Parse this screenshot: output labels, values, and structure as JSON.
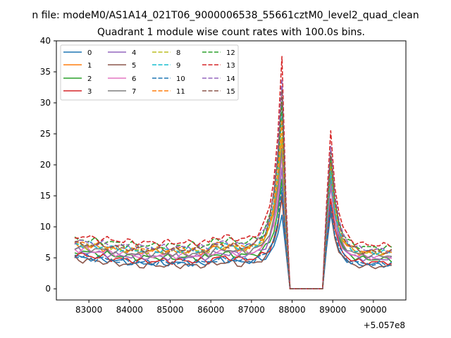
{
  "chart_data": {
    "type": "line",
    "suptitle": "n file: modeM0/AS1A14_021T06_9000006538_55661cztM0_level2_quad_clean",
    "title": "Quadrant 1 module wise count rates with 100.0s bins.",
    "xlabel": "",
    "ylabel": "",
    "x_offset_label": "+5.057e8",
    "xlim": [
      82200,
      90800
    ],
    "ylim": [
      -1.8,
      40
    ],
    "xticks": [
      83000,
      84000,
      85000,
      86000,
      87000,
      88000,
      89000,
      90000
    ],
    "xtick_labels": [
      "83000",
      "84000",
      "85000",
      "86000",
      "87000",
      "88000",
      "89000",
      "90000"
    ],
    "yticks": [
      0,
      5,
      10,
      15,
      20,
      25,
      30,
      35,
      40
    ],
    "ytick_labels": [
      "0",
      "5",
      "10",
      "15",
      "20",
      "25",
      "30",
      "35",
      "40"
    ],
    "legend_position": "upper-left",
    "legend_columns": 4,
    "grid": false,
    "x_start": 82650,
    "x_step": 100,
    "series": [
      {
        "name": "0",
        "color": "#1f77b4",
        "dash": "solid",
        "base": 4.6,
        "peak1": 12.0,
        "peak2": 12.2
      },
      {
        "name": "1",
        "color": "#ff7f0e",
        "dash": "solid",
        "base": 6.7,
        "peak1": 25.0,
        "peak2": 19.5
      },
      {
        "name": "2",
        "color": "#2ca02c",
        "dash": "solid",
        "base": 5.6,
        "peak1": 18.0,
        "peak2": 17.0
      },
      {
        "name": "3",
        "color": "#d62728",
        "dash": "solid",
        "base": 5.0,
        "peak1": 14.8,
        "peak2": 14.5
      },
      {
        "name": "4",
        "color": "#9467bd",
        "dash": "solid",
        "base": 5.7,
        "peak1": 20.0,
        "peak2": 16.5
      },
      {
        "name": "5",
        "color": "#8c564b",
        "dash": "solid",
        "base": 4.2,
        "peak1": 15.5,
        "peak2": 13.0
      },
      {
        "name": "6",
        "color": "#e377c2",
        "dash": "solid",
        "base": 6.0,
        "peak1": 21.5,
        "peak2": 17.5
      },
      {
        "name": "7",
        "color": "#7f7f7f",
        "dash": "solid",
        "base": 6.3,
        "peak1": 23.0,
        "peak2": 18.0
      },
      {
        "name": "8",
        "color": "#bcbd22",
        "dash": "dashed",
        "base": 6.8,
        "peak1": 26.0,
        "peak2": 20.0
      },
      {
        "name": "9",
        "color": "#17becf",
        "dash": "dashed",
        "base": 6.9,
        "peak1": 29.0,
        "peak2": 19.0
      },
      {
        "name": "10",
        "color": "#1f77b4",
        "dash": "dashed",
        "base": 4.7,
        "peak1": 16.0,
        "peak2": 13.5
      },
      {
        "name": "11",
        "color": "#ff7f0e",
        "dash": "dashed",
        "base": 7.1,
        "peak1": 27.5,
        "peak2": 21.0
      },
      {
        "name": "12",
        "color": "#2ca02c",
        "dash": "dashed",
        "base": 7.8,
        "peak1": 31.0,
        "peak2": 21.5
      },
      {
        "name": "13",
        "color": "#d62728",
        "dash": "dashed",
        "base": 8.3,
        "peak1": 38.0,
        "peak2": 25.5
      },
      {
        "name": "14",
        "color": "#9467bd",
        "dash": "dashed",
        "base": 7.4,
        "peak1": 34.0,
        "peak2": 23.0
      },
      {
        "name": "15",
        "color": "#8c564b",
        "dash": "dashed",
        "base": 7.0,
        "peak1": 32.5,
        "peak2": 22.0
      }
    ]
  }
}
